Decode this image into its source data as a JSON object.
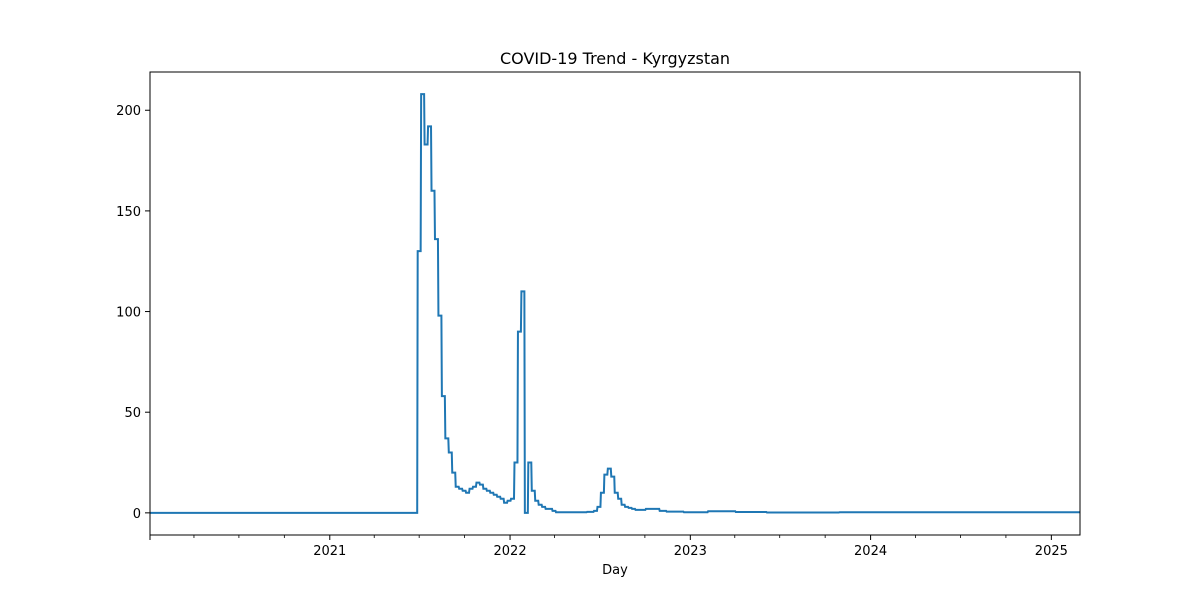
{
  "chart_data": {
    "type": "line",
    "title": "COVID-19 Trend - Kyrgyzstan",
    "xlabel": "Day",
    "ylabel": "",
    "xlim": [
      "2020-01-03",
      "2025-02-28"
    ],
    "ylim": [
      -11,
      219
    ],
    "x_ticks": [
      "2021-01-01",
      "2022-01-01",
      "2023-01-01",
      "2024-01-01",
      "2025-01-01"
    ],
    "x_tick_labels": [
      "2021",
      "2022",
      "2023",
      "2024",
      "2025"
    ],
    "y_ticks": [
      0,
      50,
      100,
      150,
      200
    ],
    "y_tick_labels": [
      "0",
      "50",
      "100",
      "150",
      "200"
    ],
    "grid": false,
    "legend": "none",
    "line_color": "#1f77b4",
    "series": [
      {
        "x": [
          "2020-01-03",
          "2021-06-27",
          "2021-06-28",
          "2021-07-04",
          "2021-07-05",
          "2021-07-11",
          "2021-07-12",
          "2021-07-18",
          "2021-07-19",
          "2021-07-25",
          "2021-07-26",
          "2021-08-01",
          "2021-08-02",
          "2021-08-08",
          "2021-08-09",
          "2021-08-15",
          "2021-08-16",
          "2021-08-22",
          "2021-08-23",
          "2021-08-29",
          "2021-08-30",
          "2021-09-05",
          "2021-09-06",
          "2021-09-12",
          "2021-09-13",
          "2021-09-19",
          "2021-09-20",
          "2021-09-26",
          "2021-09-27",
          "2021-10-03",
          "2021-10-04",
          "2021-10-10",
          "2021-10-11",
          "2021-10-17",
          "2021-10-18",
          "2021-10-24",
          "2021-10-25",
          "2021-10-31",
          "2021-11-01",
          "2021-11-07",
          "2021-11-08",
          "2021-11-14",
          "2021-11-15",
          "2021-11-21",
          "2021-11-22",
          "2021-11-28",
          "2021-11-29",
          "2021-12-05",
          "2021-12-06",
          "2021-12-12",
          "2021-12-13",
          "2021-12-19",
          "2021-12-20",
          "2021-12-26",
          "2021-12-27",
          "2022-01-02",
          "2022-01-03",
          "2022-01-09",
          "2022-01-10",
          "2022-01-16",
          "2022-01-17",
          "2022-01-23",
          "2022-01-24",
          "2022-01-30",
          "2022-01-31",
          "2022-02-06",
          "2022-02-07",
          "2022-02-13",
          "2022-02-14",
          "2022-02-20",
          "2022-02-21",
          "2022-02-27",
          "2022-02-28",
          "2022-03-06",
          "2022-03-07",
          "2022-03-13",
          "2022-03-14",
          "2022-03-20",
          "2022-03-21",
          "2022-03-27",
          "2022-03-28",
          "2022-04-03",
          "2022-04-04",
          "2022-06-05",
          "2022-06-06",
          "2022-06-19",
          "2022-06-20",
          "2022-06-26",
          "2022-06-27",
          "2022-07-03",
          "2022-07-04",
          "2022-07-10",
          "2022-07-11",
          "2022-07-17",
          "2022-07-18",
          "2022-07-24",
          "2022-07-25",
          "2022-07-31",
          "2022-08-01",
          "2022-08-07",
          "2022-08-08",
          "2022-08-14",
          "2022-08-15",
          "2022-08-21",
          "2022-08-22",
          "2022-08-28",
          "2022-08-29",
          "2022-09-04",
          "2022-09-05",
          "2022-09-11",
          "2022-09-12",
          "2022-10-02",
          "2022-10-03",
          "2022-10-30",
          "2022-10-31",
          "2022-11-13",
          "2022-11-14",
          "2022-12-18",
          "2022-12-19",
          "2023-02-05",
          "2023-02-06",
          "2023-04-02",
          "2023-04-03",
          "2023-06-04",
          "2023-06-05",
          "2023-10-29",
          "2023-10-30",
          "2025-02-28"
        ],
        "y": [
          0,
          0,
          130,
          130,
          208,
          208,
          183,
          183,
          192,
          192,
          160,
          160,
          136,
          136,
          98,
          98,
          58,
          58,
          37,
          37,
          30,
          30,
          20,
          20,
          13,
          13,
          12,
          12,
          11,
          11,
          10,
          10,
          12,
          12,
          13,
          13,
          15,
          15,
          14,
          14,
          12,
          12,
          11,
          11,
          10,
          10,
          9,
          9,
          8,
          8,
          7,
          7,
          5,
          5,
          6,
          6,
          7,
          7,
          25,
          25,
          90,
          90,
          110,
          110,
          0,
          0,
          25,
          25,
          11,
          11,
          6,
          6,
          4,
          4,
          3,
          3,
          2,
          2,
          2,
          2,
          1,
          1,
          0.3,
          0.3,
          0.5,
          0.5,
          1,
          1,
          3,
          3,
          10,
          10,
          19,
          19,
          22,
          22,
          18,
          18,
          10,
          10,
          7,
          7,
          4,
          4,
          3,
          3,
          2.5,
          2.5,
          2,
          2,
          1.5,
          1.5,
          2,
          2,
          1,
          1,
          0.6,
          0.6,
          0.3,
          0.3,
          0.8,
          0.8,
          0.4,
          0.4,
          0.2,
          0.2,
          0.3,
          0.3
        ]
      }
    ]
  }
}
